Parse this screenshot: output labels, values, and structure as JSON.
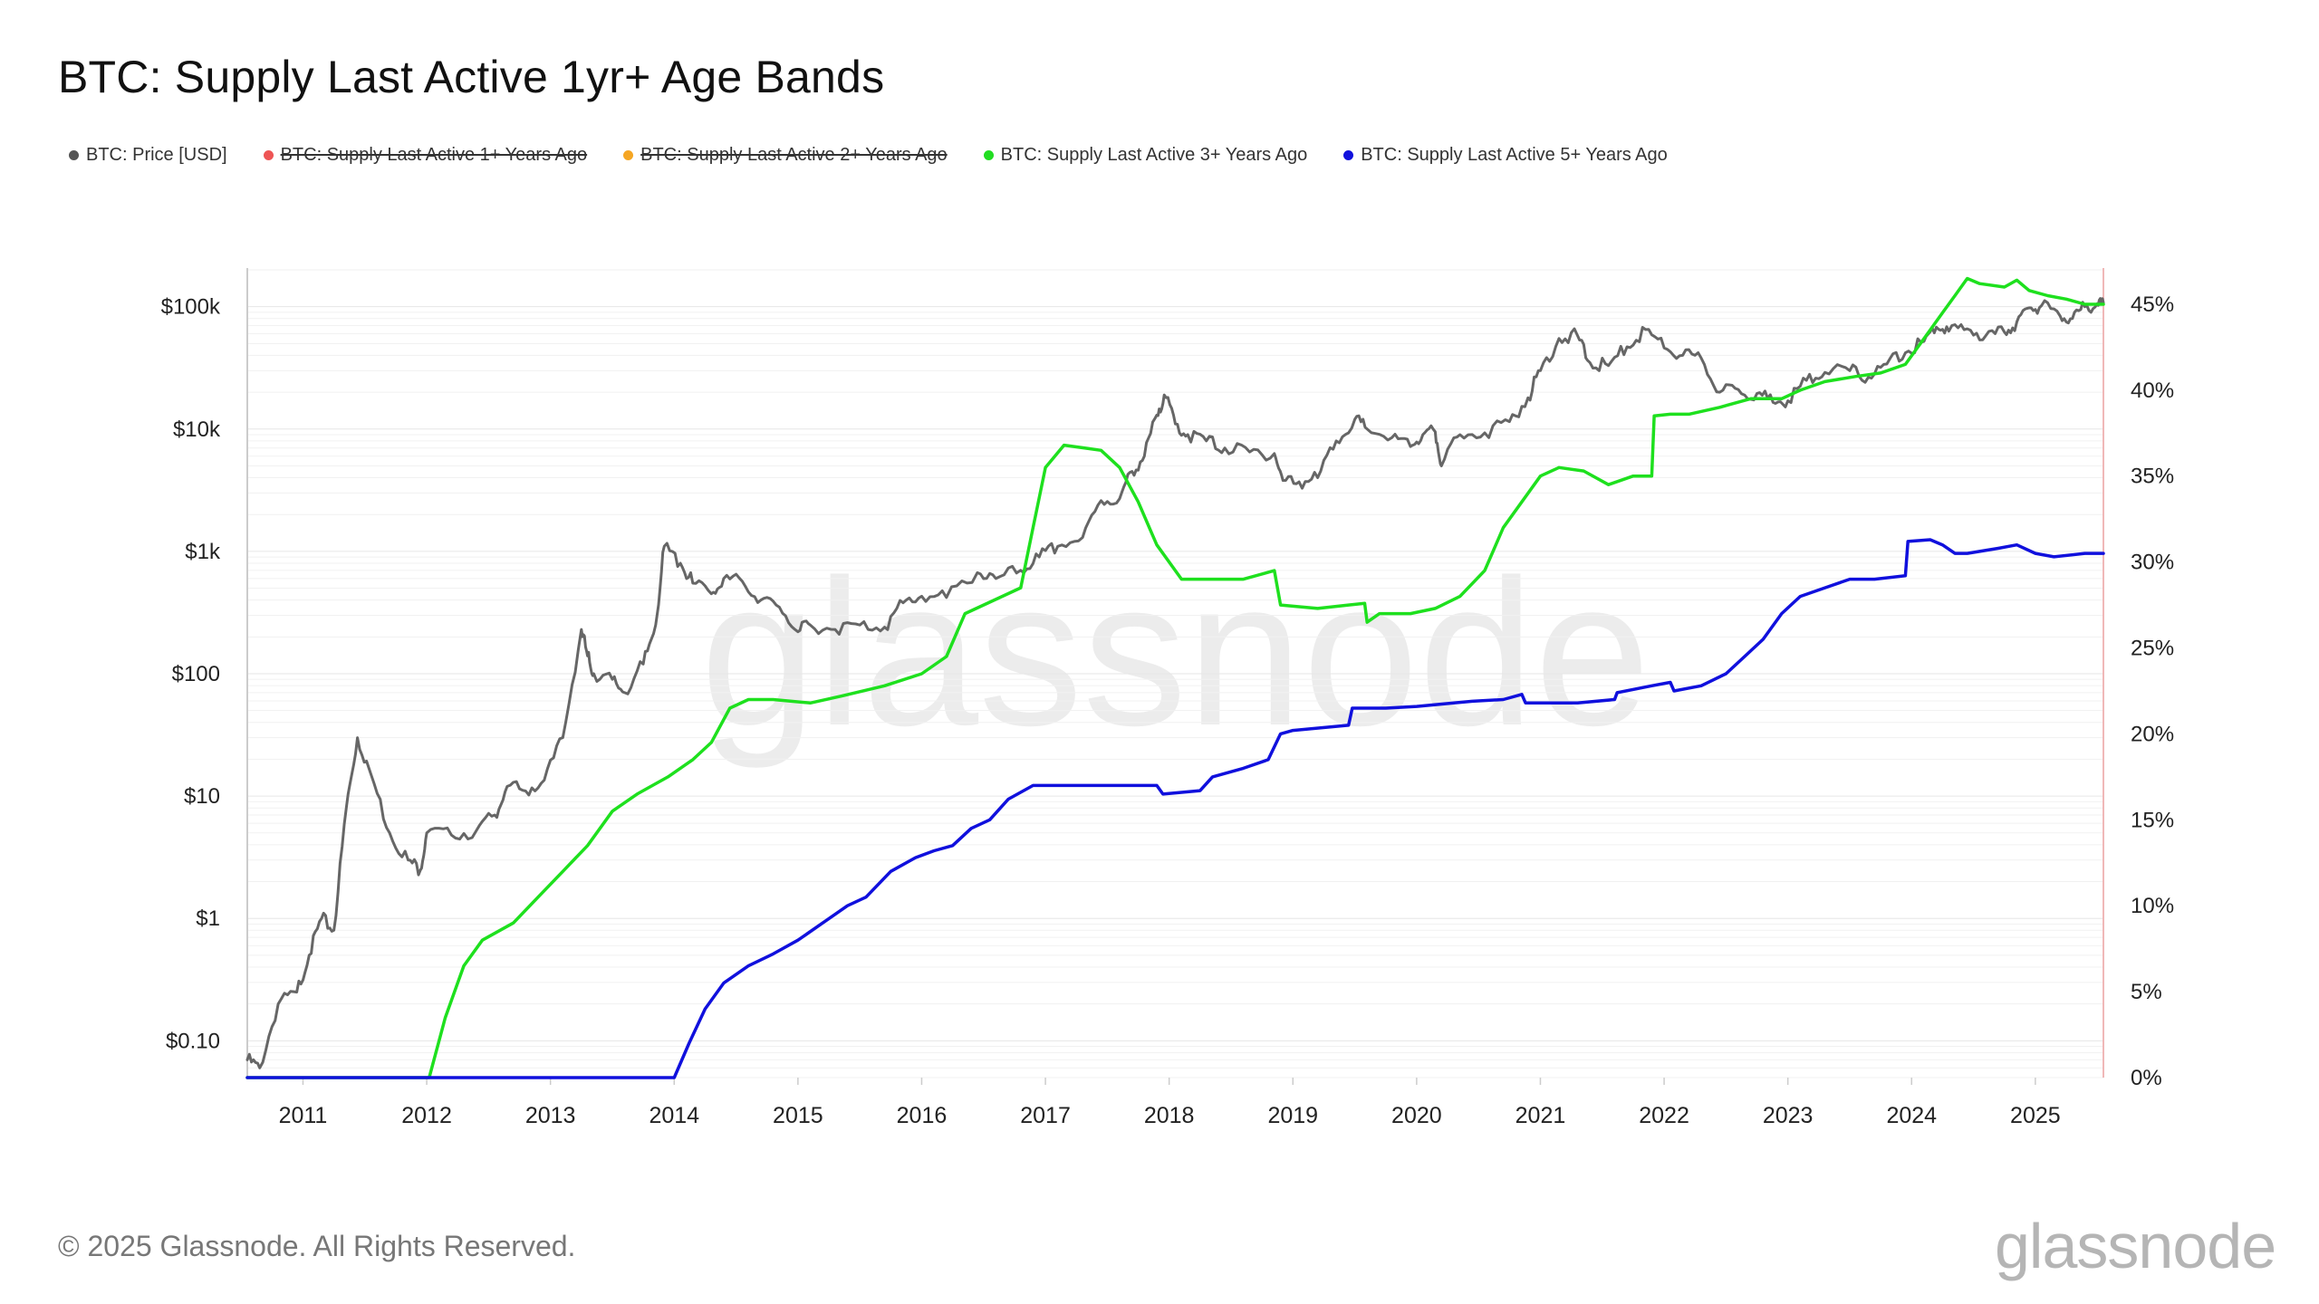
{
  "title": "BTC: Supply Last Active 1yr+ Age Bands",
  "legend": [
    {
      "label": "BTC: Price [USD]",
      "color": "#555555",
      "hidden": false
    },
    {
      "label": "BTC: Supply Last Active 1+ Years Ago",
      "color": "#ee5555",
      "hidden": true
    },
    {
      "label": "BTC: Supply Last Active 2+ Years Ago",
      "color": "#f5a623",
      "hidden": true
    },
    {
      "label": "BTC: Supply Last Active 3+ Years Ago",
      "color": "#22dd22",
      "hidden": false
    },
    {
      "label": "BTC: Supply Last Active 5+ Years Ago",
      "color": "#1111dd",
      "hidden": false
    }
  ],
  "footer": "© 2025 Glassnode. All Rights Reserved.",
  "watermark": "glassnode",
  "brand": "glassnode",
  "chart_data": {
    "type": "line",
    "x_ticks": [
      "2011",
      "2012",
      "2013",
      "2014",
      "2015",
      "2016",
      "2017",
      "2018",
      "2019",
      "2020",
      "2021",
      "2022",
      "2023",
      "2024",
      "2025"
    ],
    "x_range": [
      2010.55,
      2025.55
    ],
    "y_left": {
      "scale": "log",
      "range": [
        0.05,
        200000
      ],
      "ticks": [
        {
          "value": 0.1,
          "label": "$0.10"
        },
        {
          "value": 1,
          "label": "$1"
        },
        {
          "value": 10,
          "label": "$10"
        },
        {
          "value": 100,
          "label": "$100"
        },
        {
          "value": 1000,
          "label": "$1k"
        },
        {
          "value": 10000,
          "label": "$10k"
        },
        {
          "value": 100000,
          "label": "$100k"
        }
      ]
    },
    "y_right": {
      "scale": "linear",
      "range": [
        0,
        47
      ],
      "ticks": [
        {
          "value": 0,
          "label": "0%"
        },
        {
          "value": 5,
          "label": "5%"
        },
        {
          "value": 10,
          "label": "10%"
        },
        {
          "value": 15,
          "label": "15%"
        },
        {
          "value": 20,
          "label": "20%"
        },
        {
          "value": 25,
          "label": "25%"
        },
        {
          "value": 30,
          "label": "30%"
        },
        {
          "value": 35,
          "label": "35%"
        },
        {
          "value": 40,
          "label": "40%"
        },
        {
          "value": 45,
          "label": "45%"
        }
      ]
    },
    "series": [
      {
        "name": "BTC: Price [USD]",
        "axis": "left",
        "color": "#666666",
        "points": [
          [
            2010.55,
            0.07
          ],
          [
            2010.65,
            0.06
          ],
          [
            2010.8,
            0.2
          ],
          [
            2010.95,
            0.25
          ],
          [
            2011.05,
            0.5
          ],
          [
            2011.15,
            1.0
          ],
          [
            2011.25,
            0.8
          ],
          [
            2011.35,
            8
          ],
          [
            2011.44,
            30
          ],
          [
            2011.55,
            15
          ],
          [
            2011.7,
            5
          ],
          [
            2011.85,
            3
          ],
          [
            2011.95,
            2.5
          ],
          [
            2012.0,
            5
          ],
          [
            2012.2,
            4.8
          ],
          [
            2012.4,
            5.2
          ],
          [
            2012.55,
            7
          ],
          [
            2012.65,
            12
          ],
          [
            2012.8,
            11
          ],
          [
            2012.95,
            13.5
          ],
          [
            2013.1,
            30
          ],
          [
            2013.25,
            230
          ],
          [
            2013.3,
            140
          ],
          [
            2013.35,
            100
          ],
          [
            2013.5,
            90
          ],
          [
            2013.6,
            70
          ],
          [
            2013.75,
            120
          ],
          [
            2013.85,
            250
          ],
          [
            2013.92,
            1100
          ],
          [
            2014.05,
            800
          ],
          [
            2014.15,
            550
          ],
          [
            2014.3,
            450
          ],
          [
            2014.4,
            600
          ],
          [
            2014.55,
            570
          ],
          [
            2014.7,
            400
          ],
          [
            2014.85,
            350
          ],
          [
            2015.0,
            220
          ],
          [
            2015.1,
            250
          ],
          [
            2015.3,
            230
          ],
          [
            2015.5,
            250
          ],
          [
            2015.7,
            240
          ],
          [
            2015.85,
            380
          ],
          [
            2016.0,
            430
          ],
          [
            2016.2,
            420
          ],
          [
            2016.45,
            670
          ],
          [
            2016.6,
            600
          ],
          [
            2016.8,
            700
          ],
          [
            2016.95,
            900
          ],
          [
            2017.1,
            1100
          ],
          [
            2017.3,
            1300
          ],
          [
            2017.45,
            2600
          ],
          [
            2017.6,
            2700
          ],
          [
            2017.7,
            4500
          ],
          [
            2017.8,
            6000
          ],
          [
            2017.9,
            13000
          ],
          [
            2017.96,
            19000
          ],
          [
            2018.05,
            11000
          ],
          [
            2018.15,
            9000
          ],
          [
            2018.3,
            8000
          ],
          [
            2018.45,
            7000
          ],
          [
            2018.65,
            6500
          ],
          [
            2018.85,
            6300
          ],
          [
            2018.92,
            3800
          ],
          [
            2019.05,
            3700
          ],
          [
            2019.2,
            4000
          ],
          [
            2019.35,
            8000
          ],
          [
            2019.5,
            12000
          ],
          [
            2019.6,
            10000
          ],
          [
            2019.8,
            8500
          ],
          [
            2019.95,
            7200
          ],
          [
            2020.05,
            9000
          ],
          [
            2020.15,
            9500
          ],
          [
            2020.2,
            5000
          ],
          [
            2020.35,
            9000
          ],
          [
            2020.55,
            9300
          ],
          [
            2020.75,
            11500
          ],
          [
            2020.9,
            18000
          ],
          [
            2021.0,
            30000
          ],
          [
            2021.15,
            55000
          ],
          [
            2021.3,
            58000
          ],
          [
            2021.4,
            35000
          ],
          [
            2021.55,
            33000
          ],
          [
            2021.7,
            47000
          ],
          [
            2021.85,
            65000
          ],
          [
            2022.0,
            46000
          ],
          [
            2022.15,
            40000
          ],
          [
            2022.3,
            38000
          ],
          [
            2022.45,
            20000
          ],
          [
            2022.6,
            21000
          ],
          [
            2022.75,
            19500
          ],
          [
            2022.88,
            16500
          ],
          [
            2023.0,
            17000
          ],
          [
            2023.15,
            25000
          ],
          [
            2023.3,
            29000
          ],
          [
            2023.5,
            30000
          ],
          [
            2023.65,
            26500
          ],
          [
            2023.8,
            34000
          ],
          [
            2023.95,
            42000
          ],
          [
            2024.1,
            52000
          ],
          [
            2024.2,
            68000
          ],
          [
            2024.3,
            63000
          ],
          [
            2024.45,
            66000
          ],
          [
            2024.6,
            58000
          ],
          [
            2024.75,
            62000
          ],
          [
            2024.85,
            75000
          ],
          [
            2024.95,
            98000
          ],
          [
            2025.05,
            102000
          ],
          [
            2025.2,
            84000
          ],
          [
            2025.3,
            80000
          ],
          [
            2025.4,
            100000
          ],
          [
            2025.5,
            106000
          ],
          [
            2025.55,
            108000
          ]
        ]
      },
      {
        "name": "BTC: Supply Last Active 3+ Years Ago",
        "axis": "right",
        "color": "#1ee01e",
        "points": [
          [
            2010.55,
            0
          ],
          [
            2012.02,
            0
          ],
          [
            2012.15,
            3.5
          ],
          [
            2012.3,
            6.5
          ],
          [
            2012.45,
            8
          ],
          [
            2012.7,
            9
          ],
          [
            2012.9,
            10.5
          ],
          [
            2013.1,
            12
          ],
          [
            2013.3,
            13.5
          ],
          [
            2013.5,
            15.5
          ],
          [
            2013.7,
            16.5
          ],
          [
            2013.95,
            17.5
          ],
          [
            2014.15,
            18.5
          ],
          [
            2014.3,
            19.5
          ],
          [
            2014.45,
            21.5
          ],
          [
            2014.6,
            22
          ],
          [
            2014.8,
            22
          ],
          [
            2015.1,
            21.8
          ],
          [
            2015.35,
            22.2
          ],
          [
            2015.7,
            22.8
          ],
          [
            2016.0,
            23.5
          ],
          [
            2016.2,
            24.5
          ],
          [
            2016.35,
            27
          ],
          [
            2016.5,
            27.5
          ],
          [
            2016.8,
            28.5
          ],
          [
            2016.9,
            32
          ],
          [
            2017.0,
            35.5
          ],
          [
            2017.15,
            36.8
          ],
          [
            2017.35,
            36.6
          ],
          [
            2017.45,
            36.5
          ],
          [
            2017.6,
            35.5
          ],
          [
            2017.75,
            33.5
          ],
          [
            2017.9,
            31
          ],
          [
            2018.1,
            29
          ],
          [
            2018.3,
            29
          ],
          [
            2018.6,
            29
          ],
          [
            2018.85,
            29.5
          ],
          [
            2018.9,
            27.5
          ],
          [
            2019.2,
            27.3
          ],
          [
            2019.45,
            27.5
          ],
          [
            2019.58,
            27.6
          ],
          [
            2019.6,
            26.5
          ],
          [
            2019.7,
            27
          ],
          [
            2019.95,
            27
          ],
          [
            2020.15,
            27.3
          ],
          [
            2020.35,
            28
          ],
          [
            2020.55,
            29.5
          ],
          [
            2020.7,
            32
          ],
          [
            2020.85,
            33.5
          ],
          [
            2021.0,
            35
          ],
          [
            2021.15,
            35.5
          ],
          [
            2021.35,
            35.3
          ],
          [
            2021.55,
            34.5
          ],
          [
            2021.75,
            35
          ],
          [
            2021.9,
            35
          ],
          [
            2021.92,
            38.5
          ],
          [
            2022.05,
            38.6
          ],
          [
            2022.2,
            38.6
          ],
          [
            2022.45,
            39
          ],
          [
            2022.7,
            39.5
          ],
          [
            2022.95,
            39.5
          ],
          [
            2023.1,
            40
          ],
          [
            2023.3,
            40.5
          ],
          [
            2023.55,
            40.8
          ],
          [
            2023.75,
            41
          ],
          [
            2023.95,
            41.5
          ],
          [
            2024.05,
            42.5
          ],
          [
            2024.15,
            43.5
          ],
          [
            2024.25,
            44.5
          ],
          [
            2024.35,
            45.5
          ],
          [
            2024.45,
            46.5
          ],
          [
            2024.55,
            46.2
          ],
          [
            2024.75,
            46
          ],
          [
            2024.85,
            46.4
          ],
          [
            2024.95,
            45.8
          ],
          [
            2025.1,
            45.5
          ],
          [
            2025.25,
            45.3
          ],
          [
            2025.4,
            45
          ],
          [
            2025.55,
            45
          ]
        ]
      },
      {
        "name": "BTC: Supply Last Active 5+ Years Ago",
        "axis": "right",
        "color": "#1010dd",
        "points": [
          [
            2010.55,
            0
          ],
          [
            2014.0,
            0
          ],
          [
            2014.12,
            2
          ],
          [
            2014.25,
            4
          ],
          [
            2014.4,
            5.5
          ],
          [
            2014.6,
            6.5
          ],
          [
            2014.8,
            7.2
          ],
          [
            2015.0,
            8
          ],
          [
            2015.2,
            9
          ],
          [
            2015.4,
            10
          ],
          [
            2015.55,
            10.5
          ],
          [
            2015.75,
            12
          ],
          [
            2015.95,
            12.8
          ],
          [
            2016.1,
            13.2
          ],
          [
            2016.25,
            13.5
          ],
          [
            2016.4,
            14.5
          ],
          [
            2016.55,
            15
          ],
          [
            2016.7,
            16.2
          ],
          [
            2016.9,
            17
          ],
          [
            2017.1,
            17
          ],
          [
            2017.4,
            17
          ],
          [
            2017.7,
            17
          ],
          [
            2017.9,
            17
          ],
          [
            2017.95,
            16.5
          ],
          [
            2018.25,
            16.7
          ],
          [
            2018.35,
            17.5
          ],
          [
            2018.6,
            18
          ],
          [
            2018.8,
            18.5
          ],
          [
            2018.9,
            20
          ],
          [
            2019.0,
            20.2
          ],
          [
            2019.45,
            20.5
          ],
          [
            2019.48,
            21.5
          ],
          [
            2019.75,
            21.5
          ],
          [
            2020.0,
            21.6
          ],
          [
            2020.3,
            21.8
          ],
          [
            2020.45,
            21.9
          ],
          [
            2020.7,
            22
          ],
          [
            2020.85,
            22.3
          ],
          [
            2020.88,
            21.8
          ],
          [
            2021.3,
            21.8
          ],
          [
            2021.6,
            22
          ],
          [
            2021.62,
            22.4
          ],
          [
            2021.9,
            22.8
          ],
          [
            2022.05,
            23
          ],
          [
            2022.08,
            22.5
          ],
          [
            2022.3,
            22.8
          ],
          [
            2022.5,
            23.5
          ],
          [
            2022.65,
            24.5
          ],
          [
            2022.8,
            25.5
          ],
          [
            2022.95,
            27
          ],
          [
            2023.1,
            28
          ],
          [
            2023.3,
            28.5
          ],
          [
            2023.5,
            29
          ],
          [
            2023.7,
            29
          ],
          [
            2023.95,
            29.2
          ],
          [
            2023.97,
            31.2
          ],
          [
            2024.15,
            31.3
          ],
          [
            2024.25,
            31
          ],
          [
            2024.35,
            30.5
          ],
          [
            2024.45,
            30.5
          ],
          [
            2024.7,
            30.8
          ],
          [
            2024.85,
            31
          ],
          [
            2025.0,
            30.5
          ],
          [
            2025.15,
            30.3
          ],
          [
            2025.4,
            30.5
          ],
          [
            2025.55,
            30.5
          ]
        ]
      }
    ]
  }
}
